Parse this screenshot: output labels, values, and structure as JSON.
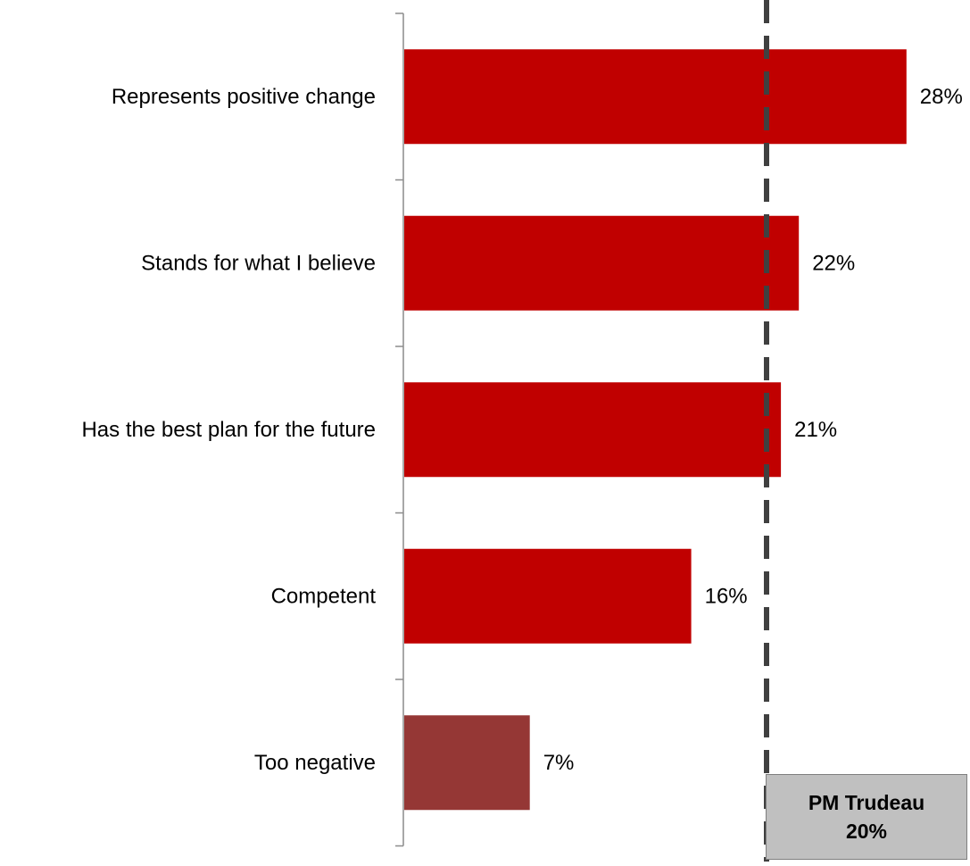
{
  "chart_data": {
    "type": "bar",
    "orientation": "horizontal",
    "categories": [
      "Represents positive change",
      "Stands for what I believe",
      "Has the best plan for the future",
      "Competent",
      "Too negative"
    ],
    "values": [
      28,
      22,
      21,
      16,
      7
    ],
    "value_labels": [
      "28%",
      "22%",
      "21%",
      "16%",
      "7%"
    ],
    "unit": "%",
    "bar_colors": [
      "#c00000",
      "#c00000",
      "#c00000",
      "#c00000",
      "#953735"
    ],
    "reference_line": {
      "value": 20,
      "label_line1": "PM Trudeau",
      "label_line2": "20%",
      "style": "dashed",
      "color": "#404040",
      "box_color": "#c0c0c0"
    },
    "xlim": [
      0,
      28
    ],
    "grid": false,
    "legend": "none"
  }
}
